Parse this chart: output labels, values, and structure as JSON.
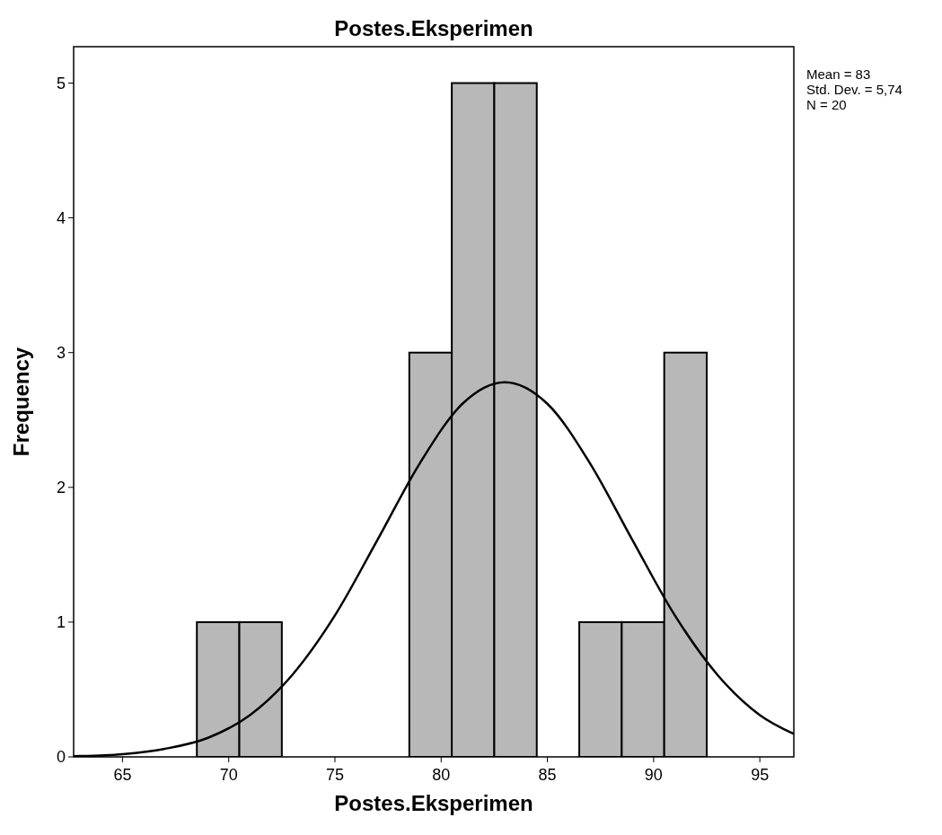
{
  "chart_data": {
    "type": "histogram",
    "title": "Postes.Eksperimen",
    "xlabel": "Postes.Eksperimen",
    "ylabel": "Frequency",
    "bins": [
      68.5,
      70.5,
      72.5,
      74.5,
      76.5,
      78.5,
      80.5,
      82.5,
      84.5,
      86.5,
      88.5,
      90.5,
      92.5
    ],
    "series": [
      {
        "color": "#b8b8b8",
        "values": [
          1,
          1,
          0,
          0,
          0,
          3,
          5,
          5,
          0,
          1,
          1,
          3
        ]
      },
      {
        "type": "line",
        "color": "#000000",
        "x": [
          62.7,
          63,
          65,
          67,
          69,
          71,
          73,
          75,
          77,
          79,
          81,
          83,
          85,
          87,
          89,
          91,
          93,
          95,
          96.6
        ],
        "values": [
          0.005,
          0.006,
          0.02,
          0.06,
          0.14,
          0.31,
          0.61,
          1.05,
          1.61,
          2.18,
          2.62,
          2.78,
          2.62,
          2.18,
          1.61,
          1.05,
          0.61,
          0.31,
          0.17
        ]
      }
    ],
    "xlim": [
      62.7,
      96.6
    ],
    "xticks": [
      65,
      70,
      75,
      80,
      85,
      90,
      95
    ],
    "ylim": [
      0,
      5.27
    ],
    "yticks": [
      0,
      1,
      2,
      3,
      4,
      5
    ],
    "grid": false,
    "annotations": [
      "Mean = 83",
      "Std. Dev. = 5,74",
      "N = 20"
    ]
  }
}
